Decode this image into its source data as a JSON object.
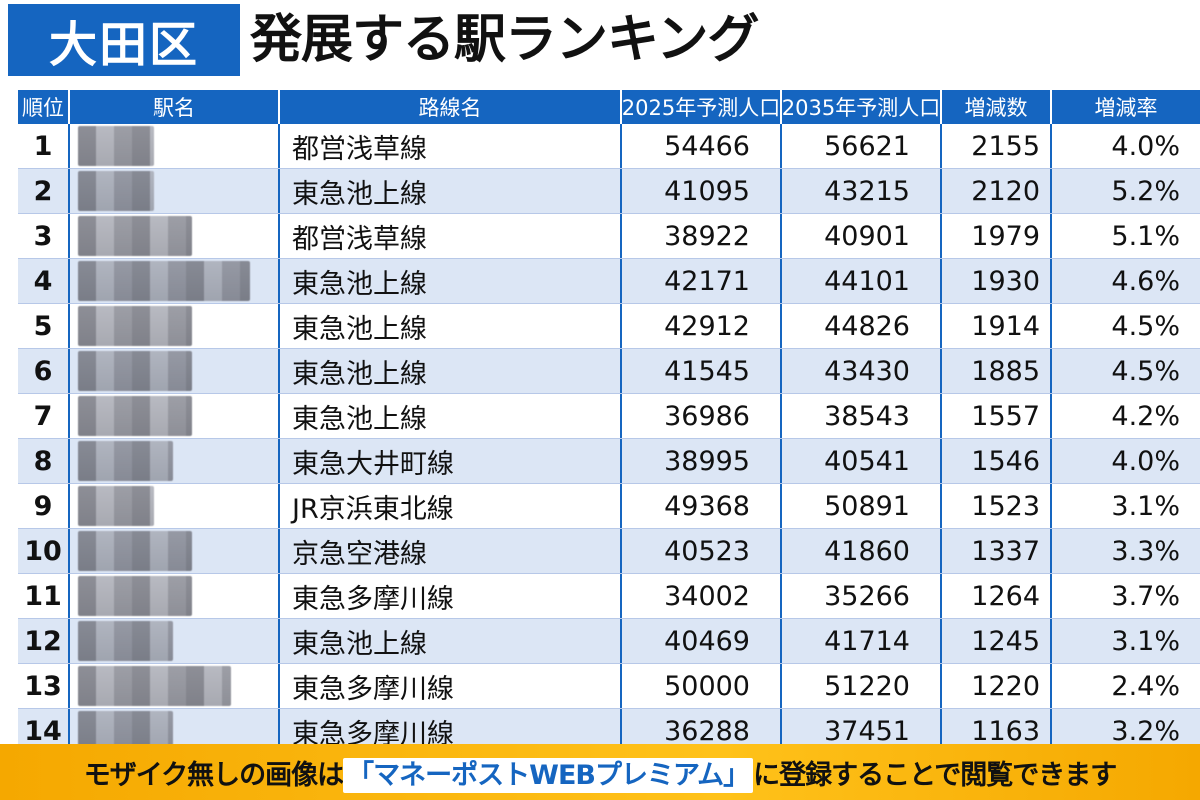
{
  "header": {
    "ward": "大田区",
    "title": "発展する駅ランキング"
  },
  "table": {
    "columns": [
      "順位",
      "駅名",
      "路線名",
      "2025年予測人口",
      "2035年予測人口",
      "増減数",
      "増減率"
    ],
    "rows": [
      {
        "rank": "1",
        "line": "都営浅草線",
        "p2025": "54466",
        "p2035": "56621",
        "diff": "2155",
        "rate": "4.0%"
      },
      {
        "rank": "2",
        "line": "東急池上線",
        "p2025": "41095",
        "p2035": "43215",
        "diff": "2120",
        "rate": "5.2%"
      },
      {
        "rank": "3",
        "line": "都営浅草線",
        "p2025": "38922",
        "p2035": "40901",
        "diff": "1979",
        "rate": "5.1%"
      },
      {
        "rank": "4",
        "line": "東急池上線",
        "p2025": "42171",
        "p2035": "44101",
        "diff": "1930",
        "rate": "4.6%"
      },
      {
        "rank": "5",
        "line": "東急池上線",
        "p2025": "42912",
        "p2035": "44826",
        "diff": "1914",
        "rate": "4.5%"
      },
      {
        "rank": "6",
        "line": "東急池上線",
        "p2025": "41545",
        "p2035": "43430",
        "diff": "1885",
        "rate": "4.5%"
      },
      {
        "rank": "7",
        "line": "東急池上線",
        "p2025": "36986",
        "p2035": "38543",
        "diff": "1557",
        "rate": "4.2%"
      },
      {
        "rank": "8",
        "line": "東急大井町線",
        "p2025": "38995",
        "p2035": "40541",
        "diff": "1546",
        "rate": "4.0%"
      },
      {
        "rank": "9",
        "line": "JR京浜東北線",
        "p2025": "49368",
        "p2035": "50891",
        "diff": "1523",
        "rate": "3.1%"
      },
      {
        "rank": "10",
        "line": "京急空港線",
        "p2025": "40523",
        "p2035": "41860",
        "diff": "1337",
        "rate": "3.3%"
      },
      {
        "rank": "11",
        "line": "東急多摩川線",
        "p2025": "34002",
        "p2035": "35266",
        "diff": "1264",
        "rate": "3.7%"
      },
      {
        "rank": "12",
        "line": "東急池上線",
        "p2025": "40469",
        "p2035": "41714",
        "diff": "1245",
        "rate": "3.1%"
      },
      {
        "rank": "13",
        "line": "東急多摩川線",
        "p2025": "50000",
        "p2035": "51220",
        "diff": "1220",
        "rate": "2.4%"
      },
      {
        "rank": "14",
        "line": "東急多摩川線",
        "p2025": "36288",
        "p2035": "37451",
        "diff": "1163",
        "rate": "3.2%"
      }
    ]
  },
  "banner": {
    "prefix": "モザイク無しの画像は",
    "highlight": "「マネーポストWEBプレミアム」",
    "suffix": "に登録することで閲覧できます"
  },
  "colors": {
    "accent": "#1565c0",
    "row_alt": "#dce6f5",
    "banner": "#ffc21a"
  }
}
